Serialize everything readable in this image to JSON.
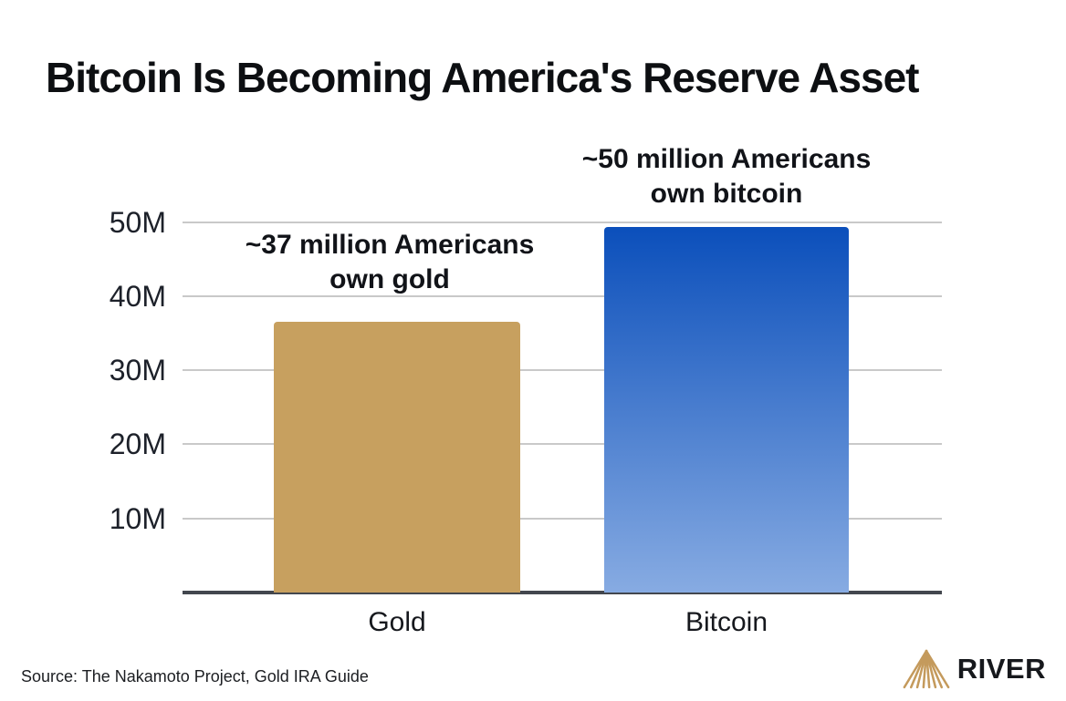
{
  "title": "Bitcoin Is Becoming America's Reserve Asset",
  "source": "Source: The Nakamoto Project, Gold IRA Guide",
  "logo": {
    "text": "RIVER",
    "icon": "river-mountain-icon",
    "icon_color": "#C49A5C",
    "text_color": "#16181c"
  },
  "chart_data": {
    "type": "bar",
    "title": "Bitcoin Is Becoming America's Reserve Asset",
    "categories": [
      "Gold",
      "Bitcoin"
    ],
    "values": [
      36.5,
      49.3
    ],
    "value_unit": "million Americans",
    "annotations": [
      "~37 million Americans\nown gold",
      "~50 million Americans\nown bitcoin"
    ],
    "yticks": [
      10,
      20,
      30,
      40,
      50
    ],
    "ytick_labels": [
      "10M",
      "20M",
      "30M",
      "40M",
      "50M"
    ],
    "ylim": [
      0,
      55
    ],
    "xlabel": "",
    "ylabel": "",
    "grid": true,
    "legend": false,
    "bar_styles": [
      {
        "name": "gold-bar",
        "fill": "#C7A05F"
      },
      {
        "name": "bitcoin-bar",
        "gradient_top": "#0B4FBB",
        "gradient_bottom": "#87ABE2"
      }
    ],
    "gridline_color": "#c9c9c9",
    "axis_color": "#43474e"
  }
}
